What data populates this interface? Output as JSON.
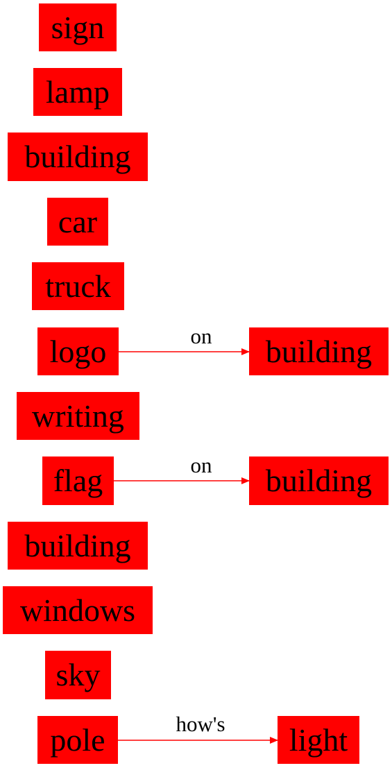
{
  "diagram": {
    "type": "scene-graph",
    "node_color": "#ff0000",
    "edge_color": "#ff0000",
    "text_color": "#000000",
    "nodes": [
      {
        "id": "n1",
        "label": "sign"
      },
      {
        "id": "n2",
        "label": "lamp"
      },
      {
        "id": "n3",
        "label": "building"
      },
      {
        "id": "n4",
        "label": "car"
      },
      {
        "id": "n5",
        "label": "truck"
      },
      {
        "id": "n6",
        "label": "logo"
      },
      {
        "id": "n7",
        "label": "building"
      },
      {
        "id": "n8",
        "label": "writing"
      },
      {
        "id": "n9",
        "label": "flag"
      },
      {
        "id": "n10",
        "label": "building"
      },
      {
        "id": "n11",
        "label": "building"
      },
      {
        "id": "n12",
        "label": "windows"
      },
      {
        "id": "n13",
        "label": "sky"
      },
      {
        "id": "n14",
        "label": "pole"
      },
      {
        "id": "n15",
        "label": "light"
      }
    ],
    "edges": [
      {
        "from": "n6",
        "to": "n7",
        "label": "on"
      },
      {
        "from": "n9",
        "to": "n10",
        "label": "on"
      },
      {
        "from": "n14",
        "to": "n15",
        "label": "how's"
      }
    ]
  }
}
